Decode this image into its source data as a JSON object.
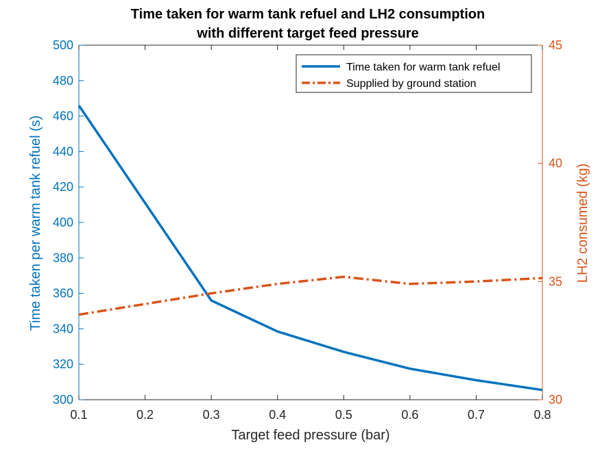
{
  "chart_data": {
    "type": "line",
    "title_lines": [
      "Time taken for warm tank refuel and LH2 consumption",
      "with different target feed pressure"
    ],
    "xlabel": "Target feed pressure (bar)",
    "ylabel_left": "Time taken per warm tank refuel (s)",
    "ylabel_right": "LH2 consumed (kg)",
    "x": [
      0.1,
      0.3,
      0.4,
      0.5,
      0.6,
      0.7,
      0.8
    ],
    "xlim": [
      0.1,
      0.8
    ],
    "xticks": [
      "0.1",
      "0.2",
      "0.3",
      "0.4",
      "0.5",
      "0.6",
      "0.7",
      "0.8"
    ],
    "ylim_left": [
      300,
      500
    ],
    "yticks_left": [
      "300",
      "320",
      "340",
      "360",
      "380",
      "400",
      "420",
      "440",
      "460",
      "480",
      "500"
    ],
    "ylim_right": [
      30,
      45
    ],
    "yticks_right": [
      "30",
      "35",
      "40",
      "45"
    ],
    "grid": false,
    "legend_position": "top-right",
    "series": [
      {
        "name": "Time taken for warm tank refuel",
        "axis": "left",
        "color": "#0072BD",
        "style": "solid",
        "x": [
          0.1,
          0.3,
          0.4,
          0.5,
          0.6,
          0.7,
          0.8
        ],
        "values": [
          466,
          356,
          338.5,
          327,
          317.5,
          311,
          305.5
        ]
      },
      {
        "name": "Supplied by ground station",
        "axis": "right",
        "color": "#D95319",
        "style": "dash-dot",
        "x": [
          0.1,
          0.3,
          0.4,
          0.5,
          0.6,
          0.7,
          0.8
        ],
        "values": [
          33.6,
          34.5,
          34.9,
          35.2,
          34.9,
          35.0,
          35.15
        ]
      }
    ]
  }
}
